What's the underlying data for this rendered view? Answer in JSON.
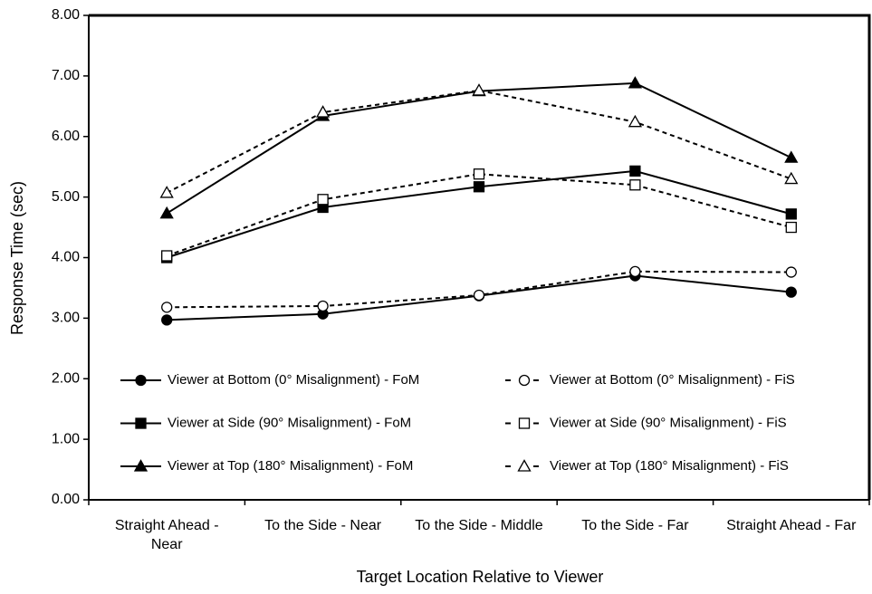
{
  "chart_data": {
    "type": "line",
    "xlabel": "Target Location Relative to Viewer",
    "ylabel": "Response Time (sec)",
    "categories": [
      "Straight Ahead - Near",
      "To the Side - Near",
      "To the Side - Middle",
      "To the Side - Far",
      "Straight Ahead - Far"
    ],
    "ylim": [
      0,
      8
    ],
    "yticks": [
      {
        "value": 0,
        "label": "0.00"
      },
      {
        "value": 1,
        "label": "1.00"
      },
      {
        "value": 2,
        "label": "2.00"
      },
      {
        "value": 3,
        "label": "3.00"
      },
      {
        "value": 4,
        "label": "4.00"
      },
      {
        "value": 5,
        "label": "5.00"
      },
      {
        "value": 6,
        "label": "6.00"
      },
      {
        "value": 7,
        "label": "7.00"
      },
      {
        "value": 8,
        "label": "8.00"
      }
    ],
    "legend": "lower",
    "series": [
      {
        "name": "Viewer at Bottom (0° Misalignment) - FoM",
        "color": "#000000",
        "marker": "circle",
        "filled": true,
        "dashed": false,
        "values": [
          2.97,
          3.07,
          3.37,
          3.7,
          3.43
        ]
      },
      {
        "name": "Viewer at Bottom (0° Misalignment) - FiS",
        "color": "#000000",
        "marker": "circle",
        "filled": false,
        "dashed": true,
        "values": [
          3.18,
          3.2,
          3.38,
          3.77,
          3.76
        ]
      },
      {
        "name": "Viewer at Side (90° Misalignment) - FoM",
        "color": "#000000",
        "marker": "square",
        "filled": true,
        "dashed": false,
        "values": [
          4.0,
          4.83,
          5.17,
          5.43,
          4.72
        ]
      },
      {
        "name": "Viewer at Side (90° Misalignment) - FiS",
        "color": "#000000",
        "marker": "square",
        "filled": false,
        "dashed": true,
        "values": [
          4.03,
          4.96,
          5.38,
          5.2,
          4.5
        ]
      },
      {
        "name": "Viewer at Top (180° Misalignment) - FoM",
        "color": "#000000",
        "marker": "triangle",
        "filled": true,
        "dashed": false,
        "values": [
          4.73,
          6.34,
          6.75,
          6.88,
          5.65
        ]
      },
      {
        "name": "Viewer at Top (180° Misalignment) - FiS",
        "color": "#000000",
        "marker": "triangle",
        "filled": false,
        "dashed": true,
        "values": [
          5.07,
          6.4,
          6.76,
          6.24,
          5.3
        ]
      }
    ]
  }
}
